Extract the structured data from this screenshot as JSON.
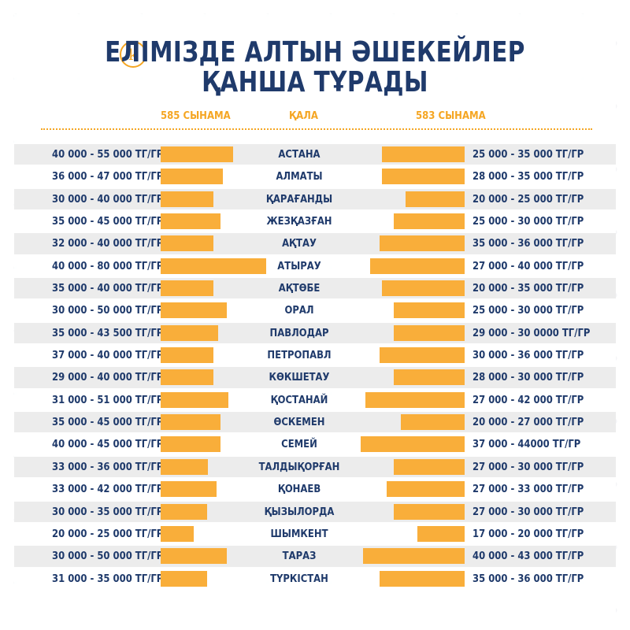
{
  "header": {
    "logo_letter": "k",
    "title_line1": "ЕЛІМІЗДЕ АЛТЫН ӘШЕКЕЙЛЕР",
    "title_line2": "ҚАНША ТҰРАДЫ"
  },
  "columns": {
    "left": "585 СЫНАМА",
    "center": "ҚАЛА",
    "right": "583 СЫНАМА"
  },
  "colors": {
    "accent": "#f9ae3a",
    "text": "#1f3a6b",
    "row_shade": "#ececec"
  },
  "chart_data": {
    "type": "table",
    "series": [
      {
        "name": "585 СЫНАМА",
        "values": [
          55000,
          47000,
          40000,
          45000,
          40000,
          80000,
          40000,
          50000,
          43500,
          40000,
          40000,
          51000,
          45000,
          45000,
          36000,
          42000,
          35000,
          25000,
          50000,
          35000
        ]
      },
      {
        "name": "583 СЫНАМА",
        "values": [
          35000,
          35000,
          25000,
          30000,
          36000,
          40000,
          35000,
          30000,
          30000,
          36000,
          30000,
          42000,
          27000,
          44000,
          30000,
          33000,
          30000,
          20000,
          43000,
          36000
        ]
      }
    ],
    "rows": [
      {
        "city": "АСТАНА",
        "left": "40 000 - 55 000 ТГ/ГР",
        "right": "25 000 - 35 000 ТГ/ГР"
      },
      {
        "city": "АЛМАТЫ",
        "left": "36 000 - 47 000 ТГ/ГР",
        "right": "28 000 - 35 000 ТГ/ГР"
      },
      {
        "city": "ҚАРАҒАНДЫ",
        "left": "30 000 - 40 000 ТГ/ГР",
        "right": "20 000 - 25 000 ТГ/ГР"
      },
      {
        "city": "ЖЕЗҚАЗҒАН",
        "left": "35 000 - 45 000 ТГ/ГР",
        "right": "25 000 - 30 000 ТГ/ГР"
      },
      {
        "city": "АҚТАУ",
        "left": "32 000 - 40 000 ТГ/ГР",
        "right": "35 000 - 36 000 ТГ/ГР"
      },
      {
        "city": "АТЫРАУ",
        "left": "40 000 - 80 000 ТГ/ГР",
        "right": "27 000 - 40 000 ТГ/ГР"
      },
      {
        "city": "АҚТӨБЕ",
        "left": "35 000 - 40 000 ТГ/ГР",
        "right": "20 000 - 35 000 ТГ/ГР"
      },
      {
        "city": "ОРАЛ",
        "left": "30 000 - 50 000 ТГ/ГР",
        "right": "25 000 - 30 000 ТГ/ГР"
      },
      {
        "city": "ПАВЛОДАР",
        "left": "35 000 - 43 500 ТГ/ГР",
        "right": "29 000 - 30 0000 ТГ/ГР"
      },
      {
        "city": "ПЕТРОПАВЛ",
        "left": "37 000 - 40 000 ТГ/ГР",
        "right": "30 000 - 36 000 ТГ/ГР"
      },
      {
        "city": "КӨКШЕТАУ",
        "left": "29 000 - 40 000 ТГ/ГР",
        "right": "28 000 - 30 000 ТГ/ГР"
      },
      {
        "city": "ҚОСТАНАЙ",
        "left": "31 000 - 51 000 ТГ/ГР",
        "right": "27 000 - 42 000 ТГ/ГР"
      },
      {
        "city": "ӨСКЕМЕН",
        "left": "35 000 - 45 000 ТГ/ГР",
        "right": "20 000 - 27 000 ТГ/ГР"
      },
      {
        "city": "СЕМЕЙ",
        "left": "40 000 - 45 000 ТГ/ГР",
        "right": "37 000 -  44000 ТГ/ГР"
      },
      {
        "city": "ТАЛДЫҚОРҒАН",
        "left": "33 000 - 36 000 ТГ/ГР",
        "right": "27 000 - 30 000 ТГ/ГР"
      },
      {
        "city": "ҚОНАЕВ",
        "left": "33 000 - 42 000 ТГ/ГР",
        "right": "27 000 - 33 000 ТГ/ГР"
      },
      {
        "city": "ҚЫЗЫЛОРДА",
        "left": "30 000 - 35 000 ТГ/ГР",
        "right": "27 000 - 30 000 ТГ/ГР"
      },
      {
        "city": "ШЫМКЕНТ",
        "left": "20 000 - 25 000 ТГ/ГР",
        "right": "17 000 - 20 000 ТГ/ГР"
      },
      {
        "city": "ТАРАЗ",
        "left": "30 000 - 50 000 ТГ/ГР",
        "right": "40 000 - 43 000 ТГ/ГР"
      },
      {
        "city": "ТҮРКІСТАН",
        "left": "31 000 - 35 000 ТГ/ГР",
        "right": "35 000 - 36 000 ТГ/ГР"
      }
    ]
  }
}
